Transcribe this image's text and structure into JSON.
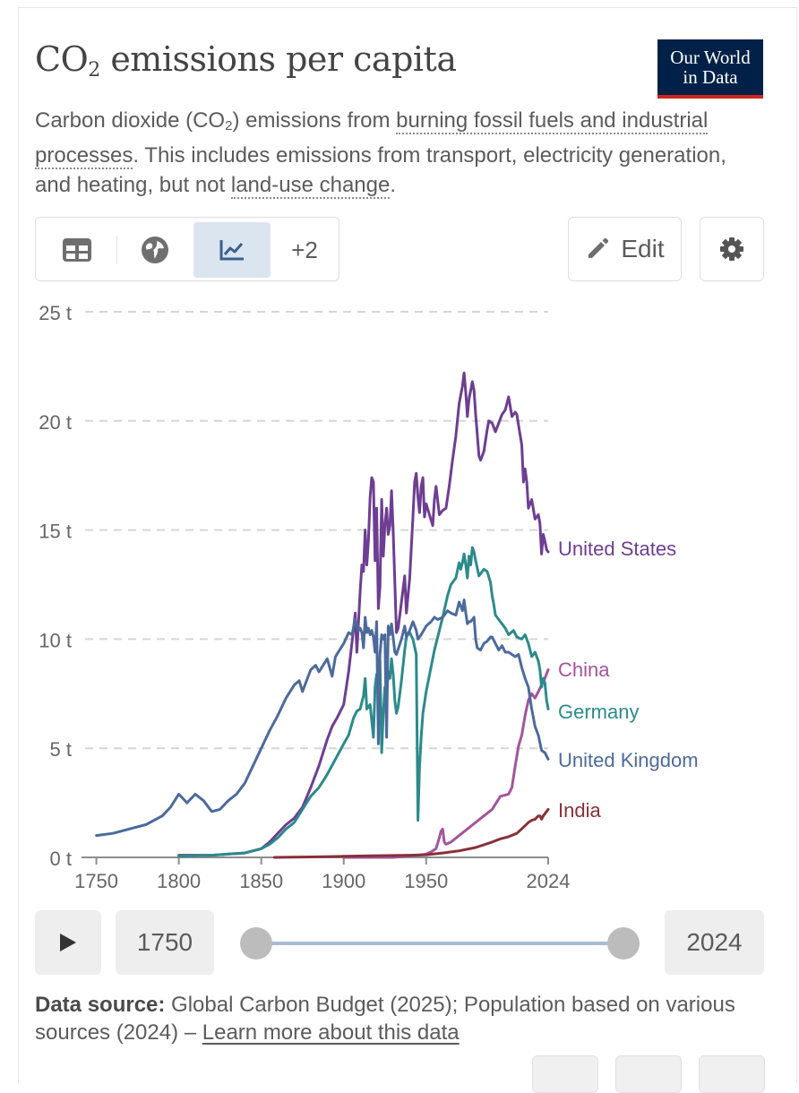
{
  "header": {
    "title_main": "CO",
    "title_sub": "2",
    "title_rest": " emissions per capita",
    "logo_line1": "Our World",
    "logo_line2": "in Data"
  },
  "subtitle": {
    "part1": "Carbon dioxide (CO",
    "sub": "2",
    "part2": ") emissions from ",
    "link1": "burning fossil fuels and industrial processes",
    "part3": ". This includes emissions from transport, electricity generation, and heating, but not ",
    "link2": "land-use change",
    "part4": "."
  },
  "toolbar": {
    "tabs": [
      {
        "icon": "table-icon",
        "active": false
      },
      {
        "icon": "globe-icon",
        "active": false
      },
      {
        "icon": "line-chart-icon",
        "active": true
      }
    ],
    "more_label": "+2",
    "edit_label": "Edit",
    "settings_icon": "gear-icon"
  },
  "timeline": {
    "play_icon": "play-icon",
    "start_label": "1750",
    "end_label": "2024"
  },
  "source": {
    "label": "Data source:",
    "text": " Global Carbon Budget (2025); Population based on various sources (2024) – ",
    "link": "Learn more about this data"
  },
  "chart_data": {
    "type": "line",
    "title": "CO₂ emissions per capita",
    "xlabel": "",
    "ylabel": "",
    "xlim": [
      1741,
      2024
    ],
    "ylim": [
      0,
      25
    ],
    "y_ticks": [
      0,
      5,
      10,
      15,
      20,
      25
    ],
    "y_tick_labels": [
      "0 t",
      "5 t",
      "10 t",
      "15 t",
      "20 t",
      "25 t"
    ],
    "x_ticks": [
      1750,
      1800,
      1850,
      1900,
      1950,
      2024
    ],
    "x_tick_labels": [
      "1750",
      "1800",
      "1850",
      "1900",
      "1950",
      "2024"
    ],
    "grid": "horizontal dashed",
    "legend": "inline labels at right end",
    "series": [
      {
        "name": "United States",
        "color": "#6d3e91",
        "x": [
          1800,
          1820,
          1830,
          1840,
          1850,
          1855,
          1860,
          1865,
          1870,
          1875,
          1880,
          1885,
          1890,
          1893,
          1896,
          1900,
          1903,
          1906,
          1907,
          1908,
          1910,
          1911,
          1912,
          1913,
          1914,
          1915,
          1916,
          1917,
          1918,
          1919,
          1920,
          1921,
          1922,
          1923,
          1924,
          1925,
          1926,
          1927,
          1928,
          1929,
          1930,
          1931,
          1932,
          1933,
          1935,
          1937,
          1938,
          1940,
          1941,
          1942,
          1943,
          1944,
          1945,
          1946,
          1947,
          1948,
          1949,
          1950,
          1952,
          1954,
          1955,
          1956,
          1958,
          1960,
          1962,
          1964,
          1966,
          1968,
          1970,
          1972,
          1973,
          1974,
          1975,
          1976,
          1977,
          1978,
          1979,
          1980,
          1981,
          1982,
          1983,
          1985,
          1987,
          1988,
          1990,
          1992,
          1994,
          1996,
          1998,
          2000,
          2002,
          2004,
          2005,
          2006,
          2008,
          2009,
          2010,
          2011,
          2012,
          2014,
          2016,
          2018,
          2019,
          2020,
          2021,
          2022,
          2023,
          2024
        ],
        "y": [
          0.1,
          0.1,
          0.15,
          0.2,
          0.4,
          0.7,
          1.1,
          1.5,
          1.8,
          2.3,
          3.2,
          4.2,
          5.4,
          6.0,
          6.4,
          7.0,
          8.5,
          10.5,
          11.2,
          9.4,
          12.2,
          13.4,
          13.1,
          15.0,
          13.4,
          14.5,
          16.5,
          17.4,
          17.2,
          13.6,
          16.0,
          11.4,
          12.4,
          16.4,
          13.8,
          15.2,
          16.0,
          14.8,
          15.2,
          16.8,
          15.0,
          12.6,
          10.3,
          10.5,
          11.7,
          12.9,
          11.2,
          12.8,
          14.2,
          15.6,
          17.2,
          17.6,
          16.5,
          15.8,
          17.0,
          17.4,
          15.6,
          16.2,
          15.7,
          15.2,
          16.4,
          17.0,
          15.7,
          15.9,
          16.0,
          17.0,
          18.2,
          19.3,
          20.8,
          21.6,
          22.2,
          21.3,
          20.2,
          21.0,
          21.4,
          21.8,
          21.4,
          20.3,
          19.4,
          18.4,
          18.2,
          18.6,
          19.6,
          20.0,
          19.9,
          19.5,
          19.9,
          20.3,
          20.5,
          21.1,
          20.2,
          20.4,
          20.3,
          19.8,
          18.9,
          17.2,
          17.8,
          17.2,
          16.0,
          16.4,
          15.5,
          15.7,
          15.3,
          13.9,
          14.8,
          14.5,
          14.1,
          14.0
        ]
      },
      {
        "name": "China",
        "color": "#a2559c",
        "x": [
          1900,
          1930,
          1945,
          1950,
          1953,
          1956,
          1958,
          1959,
          1960,
          1961,
          1962,
          1965,
          1970,
          1975,
          1980,
          1985,
          1990,
          1995,
          2000,
          2002,
          2004,
          2006,
          2008,
          2010,
          2012,
          2014,
          2016,
          2018,
          2020,
          2022,
          2024
        ],
        "y": [
          0,
          0,
          0.1,
          0.15,
          0.25,
          0.4,
          0.9,
          1.2,
          1.3,
          0.7,
          0.6,
          0.7,
          1.0,
          1.3,
          1.6,
          1.9,
          2.2,
          2.8,
          2.9,
          3.2,
          4.2,
          5.1,
          5.6,
          6.5,
          7.2,
          7.5,
          7.3,
          7.6,
          7.9,
          8.2,
          8.6
        ]
      },
      {
        "name": "Germany",
        "color": "#2c8a8b",
        "x": [
          1800,
          1820,
          1840,
          1850,
          1855,
          1860,
          1865,
          1870,
          1875,
          1880,
          1885,
          1890,
          1895,
          1900,
          1903,
          1906,
          1908,
          1910,
          1912,
          1913,
          1914,
          1916,
          1918,
          1919,
          1920,
          1921,
          1922,
          1923,
          1924,
          1925,
          1926,
          1927,
          1928,
          1929,
          1930,
          1931,
          1932,
          1933,
          1935,
          1937,
          1938,
          1939,
          1940,
          1942,
          1944,
          1945,
          1946,
          1947,
          1948,
          1950,
          1955,
          1960,
          1963,
          1965,
          1968,
          1970,
          1971,
          1972,
          1973,
          1974,
          1975,
          1976,
          1977,
          1978,
          1979,
          1980,
          1982,
          1985,
          1987,
          1989,
          1990,
          1991,
          1992,
          1995,
          1998,
          2000,
          2003,
          2005,
          2008,
          2010,
          2012,
          2014,
          2016,
          2018,
          2019,
          2020,
          2021,
          2022,
          2023,
          2024
        ],
        "y": [
          0.05,
          0.1,
          0.2,
          0.4,
          0.6,
          0.9,
          1.3,
          1.6,
          2.2,
          2.8,
          3.2,
          3.8,
          4.5,
          5.2,
          5.6,
          6.4,
          6.7,
          6.8,
          7.4,
          8.2,
          6.8,
          7.0,
          5.5,
          7.8,
          8.4,
          8.1,
          9.0,
          4.8,
          6.6,
          7.8,
          7.4,
          8.5,
          8.2,
          9.1,
          8.4,
          7.2,
          6.6,
          6.9,
          8.1,
          9.5,
          10.1,
          10.2,
          10.3,
          10.0,
          9.3,
          1.7,
          4.2,
          5.5,
          6.6,
          7.6,
          9.5,
          11.0,
          12.0,
          12.5,
          12.8,
          13.5,
          13.2,
          13.5,
          13.9,
          13.4,
          12.8,
          13.8,
          13.4,
          14.2,
          14.0,
          13.6,
          12.9,
          13.2,
          13.1,
          12.6,
          12.0,
          11.6,
          11.1,
          10.8,
          10.5,
          10.2,
          10.4,
          10.1,
          10.0,
          10.2,
          9.8,
          9.2,
          9.4,
          9.0,
          8.6,
          7.8,
          8.2,
          8.0,
          7.2,
          6.8
        ]
      },
      {
        "name": "United Kingdom",
        "color": "#4c6a9c",
        "x": [
          1750,
          1760,
          1770,
          1780,
          1790,
          1795,
          1800,
          1805,
          1810,
          1815,
          1820,
          1825,
          1830,
          1835,
          1840,
          1845,
          1850,
          1855,
          1860,
          1865,
          1870,
          1873,
          1875,
          1880,
          1883,
          1885,
          1890,
          1893,
          1895,
          1900,
          1903,
          1905,
          1907,
          1909,
          1910,
          1911,
          1912,
          1913,
          1914,
          1915,
          1916,
          1917,
          1918,
          1919,
          1920,
          1921,
          1922,
          1923,
          1924,
          1925,
          1926,
          1927,
          1928,
          1929,
          1930,
          1931,
          1932,
          1935,
          1937,
          1938,
          1940,
          1942,
          1944,
          1945,
          1947,
          1950,
          1953,
          1955,
          1957,
          1960,
          1963,
          1965,
          1968,
          1970,
          1972,
          1973,
          1974,
          1975,
          1976,
          1977,
          1978,
          1979,
          1980,
          1981,
          1983,
          1985,
          1987,
          1989,
          1990,
          1992,
          1994,
          1996,
          1998,
          2000,
          2002,
          2004,
          2006,
          2008,
          2010,
          2012,
          2014,
          2016,
          2018,
          2020,
          2022,
          2024
        ],
        "y": [
          1.0,
          1.1,
          1.3,
          1.5,
          1.9,
          2.3,
          2.9,
          2.5,
          2.9,
          2.6,
          2.1,
          2.2,
          2.6,
          2.9,
          3.4,
          4.2,
          5.0,
          5.8,
          6.5,
          7.3,
          7.9,
          8.1,
          7.6,
          8.6,
          8.8,
          8.5,
          9.1,
          8.3,
          9.2,
          9.8,
          10.3,
          10.2,
          10.9,
          10.4,
          10.5,
          10.3,
          9.6,
          11.0,
          10.3,
          10.5,
          10.2,
          10.4,
          10.1,
          9.4,
          10.8,
          5.2,
          9.3,
          10.2,
          10.0,
          10.2,
          5.5,
          10.6,
          10.2,
          10.7,
          10.1,
          9.4,
          9.3,
          10.0,
          10.6,
          10.1,
          10.4,
          10.8,
          10.4,
          10.0,
          10.2,
          10.6,
          10.8,
          11.0,
          10.9,
          11.0,
          11.3,
          11.2,
          11.1,
          11.7,
          11.3,
          11.8,
          11.2,
          10.7,
          10.8,
          10.8,
          10.9,
          11.0,
          10.0,
          9.6,
          9.5,
          9.8,
          9.9,
          10.1,
          10.1,
          9.8,
          9.5,
          9.7,
          9.4,
          9.4,
          9.3,
          9.2,
          9.3,
          8.7,
          8.2,
          7.8,
          6.8,
          6.0,
          5.6,
          4.9,
          4.8,
          4.5
        ]
      },
      {
        "name": "India",
        "color": "#883039",
        "x": [
          1858,
          1880,
          1900,
          1920,
          1940,
          1950,
          1960,
          1970,
          1980,
          1990,
          1995,
          2000,
          2005,
          2010,
          2012,
          2014,
          2016,
          2018,
          2019,
          2020,
          2021,
          2022,
          2023,
          2024
        ],
        "y": [
          0,
          0.02,
          0.05,
          0.08,
          0.1,
          0.12,
          0.2,
          0.3,
          0.45,
          0.7,
          0.85,
          0.95,
          1.1,
          1.45,
          1.6,
          1.7,
          1.75,
          1.9,
          1.9,
          1.75,
          1.9,
          2.0,
          2.1,
          2.2
        ]
      }
    ],
    "end_labels": [
      {
        "name": "United States",
        "y": 14.0
      },
      {
        "name": "China",
        "y": 8.6
      },
      {
        "name": "Germany",
        "y": 6.8
      },
      {
        "name": "United Kingdom",
        "y": 4.5
      },
      {
        "name": "India",
        "y": 2.2
      }
    ]
  }
}
